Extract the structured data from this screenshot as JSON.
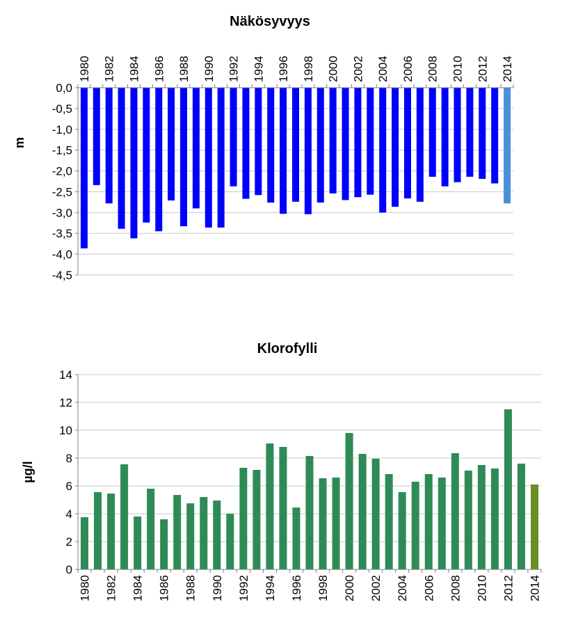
{
  "chart_data": [
    {
      "type": "bar",
      "title": "Näkösyvyys",
      "xlabel": "",
      "ylabel": "m",
      "ylim": [
        -4.5,
        0
      ],
      "y_ticks": [
        "0,0",
        "-0,5",
        "-1,0",
        "-1,5",
        "-2,0",
        "-2,5",
        "-3,0",
        "-3,5",
        "-4,0",
        "-4,5"
      ],
      "x_tick_labels": [
        "1980",
        "1982",
        "1984",
        "1986",
        "1988",
        "1990",
        "1992",
        "1994",
        "1996",
        "1998",
        "2000",
        "2002",
        "2004",
        "2006",
        "2008",
        "2010",
        "2012",
        "2014"
      ],
      "x_axis_position": "top",
      "grid": true,
      "colors": {
        "bar": "#0000ff",
        "highlight": "#4a90d9"
      },
      "categories": [
        "1980",
        "1981",
        "1982",
        "1983",
        "1984",
        "1985",
        "1986",
        "1987",
        "1988",
        "1989",
        "1990",
        "1991",
        "1992",
        "1993",
        "1994",
        "1995",
        "1996",
        "1997",
        "1998",
        "1999",
        "2000",
        "2001",
        "2002",
        "2003",
        "2004",
        "2005",
        "2006",
        "2007",
        "2008",
        "2009",
        "2010",
        "2011",
        "2012",
        "2013",
        "2014"
      ],
      "values": [
        -3.86,
        -2.34,
        -2.78,
        -3.39,
        -3.62,
        -3.24,
        -3.45,
        -2.71,
        -3.33,
        -2.9,
        -3.36,
        -3.36,
        -2.37,
        -2.67,
        -2.58,
        -2.76,
        -3.03,
        -2.74,
        -3.04,
        -2.76,
        -2.54,
        -2.7,
        -2.63,
        -2.57,
        -3.0,
        -2.86,
        -2.66,
        -2.74,
        -2.14,
        -2.37,
        -2.27,
        -2.14,
        -2.19,
        -2.3,
        -2.78
      ]
    },
    {
      "type": "bar",
      "title": "Klorofylli",
      "xlabel": "",
      "ylabel": "µg/l",
      "ylim": [
        0,
        14
      ],
      "y_ticks": [
        "0",
        "2",
        "4",
        "6",
        "8",
        "10",
        "12",
        "14"
      ],
      "x_tick_labels": [
        "1980",
        "1982",
        "1984",
        "1986",
        "1988",
        "1990",
        "1992",
        "1994",
        "1996",
        "1998",
        "2000",
        "2002",
        "2004",
        "2006",
        "2008",
        "2010",
        "2012",
        "2014"
      ],
      "x_axis_position": "bottom",
      "grid": true,
      "colors": {
        "bar": "#2e8b57",
        "highlight": "#6b8e23"
      },
      "categories": [
        "1980",
        "1981",
        "1982",
        "1983",
        "1984",
        "1985",
        "1986",
        "1987",
        "1988",
        "1989",
        "1990",
        "1991",
        "1992",
        "1993",
        "1994",
        "1995",
        "1996",
        "1997",
        "1998",
        "1999",
        "2000",
        "2001",
        "2002",
        "2003",
        "2004",
        "2005",
        "2006",
        "2007",
        "2008",
        "2009",
        "2010",
        "2011",
        "2012",
        "2013",
        "2014"
      ],
      "values": [
        3.75,
        5.55,
        5.45,
        7.55,
        3.8,
        5.8,
        3.6,
        5.35,
        4.75,
        5.2,
        4.95,
        4.0,
        7.3,
        7.15,
        9.05,
        8.8,
        4.45,
        8.15,
        6.55,
        6.6,
        9.8,
        8.3,
        7.95,
        6.85,
        5.55,
        6.3,
        6.85,
        6.6,
        8.35,
        7.1,
        7.5,
        7.25,
        11.5,
        7.6,
        6.1
      ]
    }
  ]
}
